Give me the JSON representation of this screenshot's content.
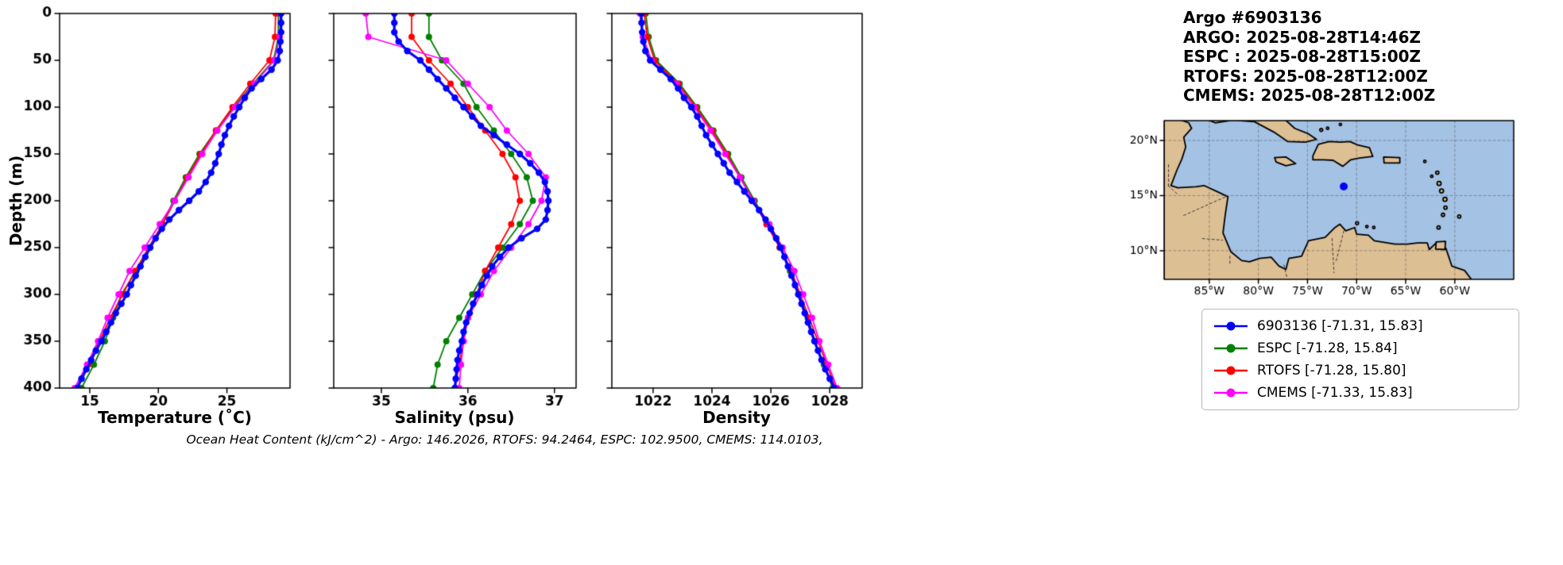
{
  "colors": {
    "argo": "#0000ff",
    "espc": "#008000",
    "rtofs": "#ff0000",
    "cmems": "#ff00ff",
    "ocean": "#a4c2e4",
    "land": "#ddbf94",
    "coast": "#000000"
  },
  "header": {
    "title": "Argo #6903136",
    "lines": [
      "ARGO: 2025-08-28T14:46Z",
      "ESPC : 2025-08-28T15:00Z",
      "RTOFS: 2025-08-28T12:00Z",
      "CMEMS: 2025-08-28T12:00Z"
    ]
  },
  "footer": {
    "text": "Ocean Heat Content (kJ/cm^2) - Argo: 146.2026,  RTOFS: 94.2464,  ESPC: 102.9500,  CMEMS: 114.0103,"
  },
  "legend": {
    "items": [
      {
        "label": "6903136 [-71.31, 15.83]",
        "color": "#0000ff"
      },
      {
        "label": "ESPC [-71.28, 15.84]",
        "color": "#008000"
      },
      {
        "label": "RTOFS [-71.28, 15.80]",
        "color": "#ff0000"
      },
      {
        "label": "CMEMS [-71.33, 15.83]",
        "color": "#ff00ff"
      }
    ]
  },
  "chart_data": [
    {
      "type": "line",
      "xlabel": "Temperature (˚C)",
      "ylabel": "Depth (m)",
      "xlim": [
        12.8,
        29.6
      ],
      "ylim": [
        0,
        400
      ],
      "y_inverted": true,
      "grid": false,
      "xticks": [
        15,
        20,
        25
      ],
      "yticks": [
        0,
        50,
        100,
        150,
        200,
        250,
        300,
        350,
        400
      ],
      "series": [
        {
          "name": "ESPC",
          "color": "#008000",
          "lw": 1.8,
          "ms": 4,
          "depths": [
            0,
            25,
            50,
            75,
            100,
            125,
            150,
            175,
            200,
            225,
            250,
            275,
            300,
            325,
            350,
            375,
            400
          ],
          "values": [
            28.75,
            28.75,
            28.4,
            26.9,
            25.5,
            24.2,
            23.0,
            22.0,
            21.1,
            20.3,
            19.4,
            18.4,
            17.3,
            16.7,
            16.1,
            15.3,
            14.4
          ]
        },
        {
          "name": "RTOFS",
          "color": "#ff0000",
          "lw": 1.8,
          "ms": 4,
          "depths": [
            0,
            25,
            50,
            75,
            100,
            125,
            150,
            175,
            200,
            225,
            250,
            275,
            300,
            325,
            350,
            375,
            400
          ],
          "values": [
            28.55,
            28.5,
            28.1,
            26.7,
            25.4,
            24.2,
            23.1,
            22.1,
            21.2,
            20.3,
            19.3,
            18.3,
            17.4,
            16.5,
            15.7,
            14.9,
            14.1
          ]
        },
        {
          "name": "CMEMS",
          "color": "#ff00ff",
          "lw": 1.8,
          "ms": 4,
          "depths": [
            0,
            25,
            50,
            75,
            100,
            125,
            150,
            175,
            200,
            225,
            250,
            275,
            300,
            325,
            350,
            375,
            400
          ],
          "values": [
            28.9,
            28.85,
            28.45,
            27.0,
            25.6,
            24.3,
            23.2,
            22.2,
            21.2,
            20.1,
            19.0,
            17.9,
            17.1,
            16.3,
            15.6,
            14.8,
            13.9
          ]
        },
        {
          "name": "6903136",
          "color": "#0000ff",
          "lw": 3.2,
          "ms": 4.2,
          "depths": [
            0,
            10,
            20,
            30,
            40,
            50,
            60,
            70,
            80,
            90,
            100,
            110,
            120,
            130,
            140,
            150,
            160,
            170,
            180,
            190,
            200,
            210,
            220,
            230,
            240,
            250,
            260,
            270,
            280,
            290,
            300,
            310,
            320,
            330,
            340,
            350,
            360,
            370,
            380,
            390,
            400
          ],
          "values": [
            28.95,
            28.95,
            28.95,
            28.9,
            28.85,
            28.7,
            28.25,
            27.5,
            26.8,
            26.3,
            25.9,
            25.5,
            25.15,
            24.85,
            24.6,
            24.4,
            24.15,
            23.85,
            23.45,
            22.95,
            22.25,
            21.5,
            20.8,
            20.25,
            19.8,
            19.4,
            19.05,
            18.7,
            18.35,
            18.0,
            17.7,
            17.3,
            16.9,
            16.55,
            16.2,
            15.85,
            15.45,
            15.1,
            14.75,
            14.4,
            14.1
          ]
        }
      ]
    },
    {
      "type": "line",
      "xlabel": "Salinity (psu)",
      "ylabel": "Depth (m)",
      "xlim": [
        34.45,
        37.25
      ],
      "ylim": [
        0,
        400
      ],
      "y_inverted": true,
      "grid": false,
      "xticks": [
        35,
        36,
        37
      ],
      "yticks": [
        0,
        50,
        100,
        150,
        200,
        250,
        300,
        350,
        400
      ],
      "series": [
        {
          "name": "ESPC",
          "color": "#008000",
          "lw": 1.8,
          "ms": 4,
          "depths": [
            0,
            25,
            50,
            75,
            100,
            125,
            150,
            175,
            200,
            225,
            250,
            275,
            300,
            325,
            350,
            375,
            400
          ],
          "values": [
            35.55,
            35.55,
            35.7,
            35.95,
            36.1,
            36.3,
            36.5,
            36.68,
            36.75,
            36.6,
            36.4,
            36.2,
            36.05,
            35.9,
            35.75,
            35.65,
            35.6
          ]
        },
        {
          "name": "RTOFS",
          "color": "#ff0000",
          "lw": 1.8,
          "ms": 4,
          "depths": [
            0,
            25,
            50,
            75,
            100,
            125,
            150,
            175,
            200,
            225,
            250,
            275,
            300,
            325,
            350,
            375,
            400
          ],
          "values": [
            35.35,
            35.35,
            35.55,
            35.8,
            36.0,
            36.2,
            36.4,
            36.55,
            36.6,
            36.5,
            36.35,
            36.2,
            36.1,
            36.0,
            35.95,
            35.9,
            35.85
          ]
        },
        {
          "name": "CMEMS",
          "color": "#ff00ff",
          "lw": 1.8,
          "ms": 4,
          "depths": [
            0,
            25,
            50,
            75,
            100,
            125,
            150,
            175,
            200,
            225,
            250,
            275,
            300,
            325,
            350,
            375,
            400
          ],
          "values": [
            34.82,
            34.85,
            35.75,
            36.0,
            36.25,
            36.45,
            36.7,
            36.9,
            36.85,
            36.7,
            36.5,
            36.3,
            36.15,
            36.0,
            35.95,
            35.92,
            35.9
          ]
        },
        {
          "name": "6903136",
          "color": "#0000ff",
          "lw": 3.2,
          "ms": 4.2,
          "depths": [
            0,
            10,
            20,
            30,
            40,
            50,
            60,
            70,
            80,
            90,
            100,
            110,
            120,
            130,
            140,
            150,
            160,
            170,
            180,
            190,
            200,
            210,
            220,
            230,
            240,
            250,
            260,
            270,
            280,
            290,
            300,
            310,
            320,
            330,
            340,
            350,
            360,
            370,
            380,
            390,
            400
          ],
          "values": [
            35.15,
            35.15,
            35.15,
            35.2,
            35.3,
            35.45,
            35.55,
            35.65,
            35.75,
            35.85,
            35.95,
            36.05,
            36.15,
            36.3,
            36.45,
            36.6,
            36.72,
            36.82,
            36.89,
            36.92,
            36.93,
            36.92,
            36.9,
            36.8,
            36.62,
            36.47,
            36.37,
            36.28,
            36.22,
            36.16,
            36.11,
            36.06,
            36.02,
            35.98,
            35.95,
            35.93,
            35.9,
            35.88,
            35.87,
            35.86,
            35.85
          ]
        }
      ]
    },
    {
      "type": "line",
      "xlabel": "Density",
      "ylabel": "Depth (m)",
      "xlim": [
        1020.6,
        1029.1
      ],
      "ylim": [
        0,
        400
      ],
      "y_inverted": true,
      "grid": false,
      "xticks": [
        1022,
        1024,
        1026,
        1028
      ],
      "yticks": [
        0,
        50,
        100,
        150,
        200,
        250,
        300,
        350,
        400
      ],
      "series": [
        {
          "name": "ESPC",
          "color": "#008000",
          "lw": 1.8,
          "ms": 4,
          "depths": [
            0,
            25,
            50,
            75,
            100,
            125,
            150,
            175,
            200,
            225,
            250,
            275,
            300,
            325,
            350,
            375,
            400
          ],
          "values": [
            1021.75,
            1021.85,
            1022.1,
            1022.9,
            1023.5,
            1024.05,
            1024.55,
            1025.0,
            1025.45,
            1025.9,
            1026.3,
            1026.65,
            1026.95,
            1027.25,
            1027.5,
            1027.8,
            1028.1
          ]
        },
        {
          "name": "RTOFS",
          "color": "#ff0000",
          "lw": 1.8,
          "ms": 4,
          "depths": [
            0,
            25,
            50,
            75,
            100,
            125,
            150,
            175,
            200,
            225,
            250,
            275,
            300,
            325,
            350,
            375,
            400
          ],
          "values": [
            1021.7,
            1021.8,
            1022.05,
            1022.85,
            1023.45,
            1024.0,
            1024.5,
            1024.95,
            1025.4,
            1025.85,
            1026.3,
            1026.7,
            1027.0,
            1027.3,
            1027.6,
            1027.9,
            1028.2
          ]
        },
        {
          "name": "CMEMS",
          "color": "#ff00ff",
          "lw": 1.8,
          "ms": 4,
          "depths": [
            0,
            25,
            50,
            75,
            100,
            125,
            150,
            175,
            200,
            225,
            250,
            275,
            300,
            325,
            350,
            375,
            400
          ],
          "values": [
            1021.55,
            1021.65,
            1021.95,
            1022.8,
            1023.4,
            1023.95,
            1024.45,
            1024.95,
            1025.4,
            1025.95,
            1026.4,
            1026.8,
            1027.1,
            1027.4,
            1027.65,
            1027.95,
            1028.25
          ]
        },
        {
          "name": "6903136",
          "color": "#0000ff",
          "lw": 3.2,
          "ms": 4.2,
          "depths": [
            0,
            10,
            20,
            30,
            40,
            50,
            60,
            70,
            80,
            90,
            100,
            110,
            120,
            130,
            140,
            150,
            160,
            170,
            180,
            190,
            200,
            210,
            220,
            230,
            240,
            250,
            260,
            270,
            280,
            290,
            300,
            310,
            320,
            330,
            340,
            350,
            360,
            370,
            380,
            390,
            400
          ],
          "values": [
            1021.6,
            1021.61,
            1021.63,
            1021.67,
            1021.74,
            1021.9,
            1022.25,
            1022.6,
            1022.85,
            1023.05,
            1023.3,
            1023.5,
            1023.65,
            1023.8,
            1024.0,
            1024.2,
            1024.4,
            1024.6,
            1024.85,
            1025.1,
            1025.35,
            1025.6,
            1025.82,
            1026.0,
            1026.18,
            1026.33,
            1026.46,
            1026.58,
            1026.7,
            1026.82,
            1026.93,
            1027.04,
            1027.15,
            1027.26,
            1027.37,
            1027.48,
            1027.6,
            1027.72,
            1027.85,
            1028.0,
            1028.15
          ]
        }
      ]
    },
    {
      "type": "map",
      "extent": [
        -89.6,
        -54,
        7.4,
        21.8
      ],
      "xticks": [
        -85,
        -80,
        -75,
        -70,
        -65,
        -60
      ],
      "xtick_labels": [
        "85°W",
        "80°W",
        "75°W",
        "70°W",
        "65°W",
        "60°W"
      ],
      "yticks": [
        10,
        15,
        20
      ],
      "ytick_labels": [
        "10°N",
        "15°N",
        "20°N"
      ],
      "grid": true,
      "marker": {
        "lon": -71.31,
        "lat": 15.83,
        "color": "#0000ff"
      }
    }
  ]
}
